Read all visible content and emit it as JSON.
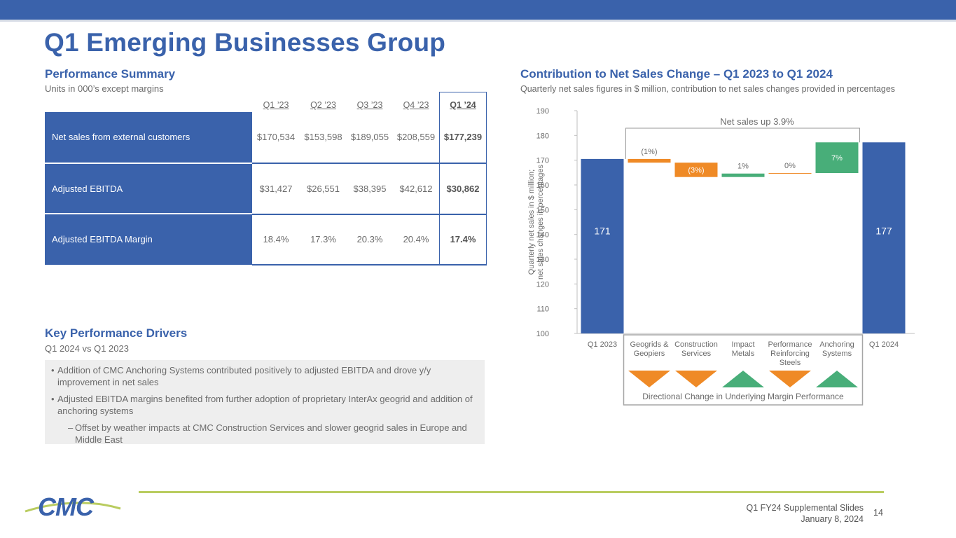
{
  "page": {
    "title": "Q1 Emerging Businesses Group",
    "footer_line1": "Q1 FY24 Supplemental Slides",
    "footer_line2": "January 8, 2024",
    "page_number": "14",
    "logo_text": "CMC"
  },
  "performance": {
    "title": "Performance Summary",
    "subtitle": "Units in 000’s except margins",
    "headers": [
      "Q1 ’23",
      "Q2 ’23",
      "Q3 ’23",
      "Q4 ’23",
      "Q1 ’24"
    ],
    "rows": [
      {
        "label": "Net sales from external customers",
        "values": [
          "$170,534",
          "$153,598",
          "$189,055",
          "$208,559",
          "$177,239"
        ]
      },
      {
        "label": "Adjusted EBITDA",
        "values": [
          "$31,427",
          "$26,551",
          "$38,395",
          "$42,612",
          "$30,862"
        ]
      },
      {
        "label": "Adjusted EBITDA Margin",
        "values": [
          "18.4%",
          "17.3%",
          "20.3%",
          "20.4%",
          "17.4%"
        ]
      }
    ]
  },
  "drivers": {
    "title": "Key Performance Drivers",
    "subtitle": "Q1 2024 vs Q1 2023",
    "bullets": [
      "Addition of CMC Anchoring Systems contributed positively to adjusted EBITDA and drove y/y improvement in net sales",
      "Adjusted EBITDA margins benefited from further adoption of proprietary InterAx geogrid and addition of anchoring systems"
    ],
    "sub_bullet": "Offset by weather impacts at CMC Construction Services and slower geogrid sales in Europe and Middle East"
  },
  "contribution": {
    "title": "Contribution to Net Sales Change – Q1 2023 to Q1 2024",
    "subtitle": "Quarterly net sales figures in $ million, contribution to net sales changes provided in percentages"
  },
  "chart_data": {
    "type": "waterfall",
    "ylabel_line1": "Quarterly net sales in $ million;",
    "ylabel_line2": "net sales changes in percentages",
    "ylim": [
      100,
      190
    ],
    "yticks": [
      100,
      110,
      120,
      130,
      140,
      150,
      160,
      170,
      180,
      190
    ],
    "bracket_label": "Net sales up 3.9%",
    "margin_caption": "Directional Change in Underlying Margin Performance",
    "bars": [
      {
        "label": "Q1 2023",
        "kind": "total",
        "start": 100,
        "end": 170.5,
        "value_label": "171",
        "color": "#3a62ab"
      },
      {
        "label": "Geogrids & Geopiers",
        "kind": "delta",
        "start": 170.5,
        "end": 169.0,
        "value_label": "(1%)",
        "color": "#ef8a26",
        "margin": "down"
      },
      {
        "label": "Construction Services",
        "kind": "delta",
        "start": 169.0,
        "end": 163.2,
        "value_label": "(3%)",
        "color": "#ef8a26",
        "margin": "down"
      },
      {
        "label": "Impact Metals",
        "kind": "delta",
        "start": 163.2,
        "end": 164.6,
        "value_label": "1%",
        "color": "#48ae79",
        "margin": "up"
      },
      {
        "label": "Performance Reinforcing Steels",
        "kind": "delta",
        "start": 164.6,
        "end": 164.8,
        "value_label": "0%",
        "color": "#ef8a26",
        "margin": "down"
      },
      {
        "label": "Anchoring Systems",
        "kind": "delta",
        "start": 164.8,
        "end": 177.2,
        "value_label": "7%",
        "color": "#48ae79",
        "margin": "up"
      },
      {
        "label": "Q1 2024",
        "kind": "total",
        "start": 100,
        "end": 177.2,
        "value_label": "177",
        "color": "#3a62ab"
      }
    ],
    "colors": {
      "axis": "#bfbfbf",
      "text": "#6b6b6b",
      "up": "#48ae79",
      "down": "#ef8a26",
      "total": "#3a62ab"
    }
  }
}
